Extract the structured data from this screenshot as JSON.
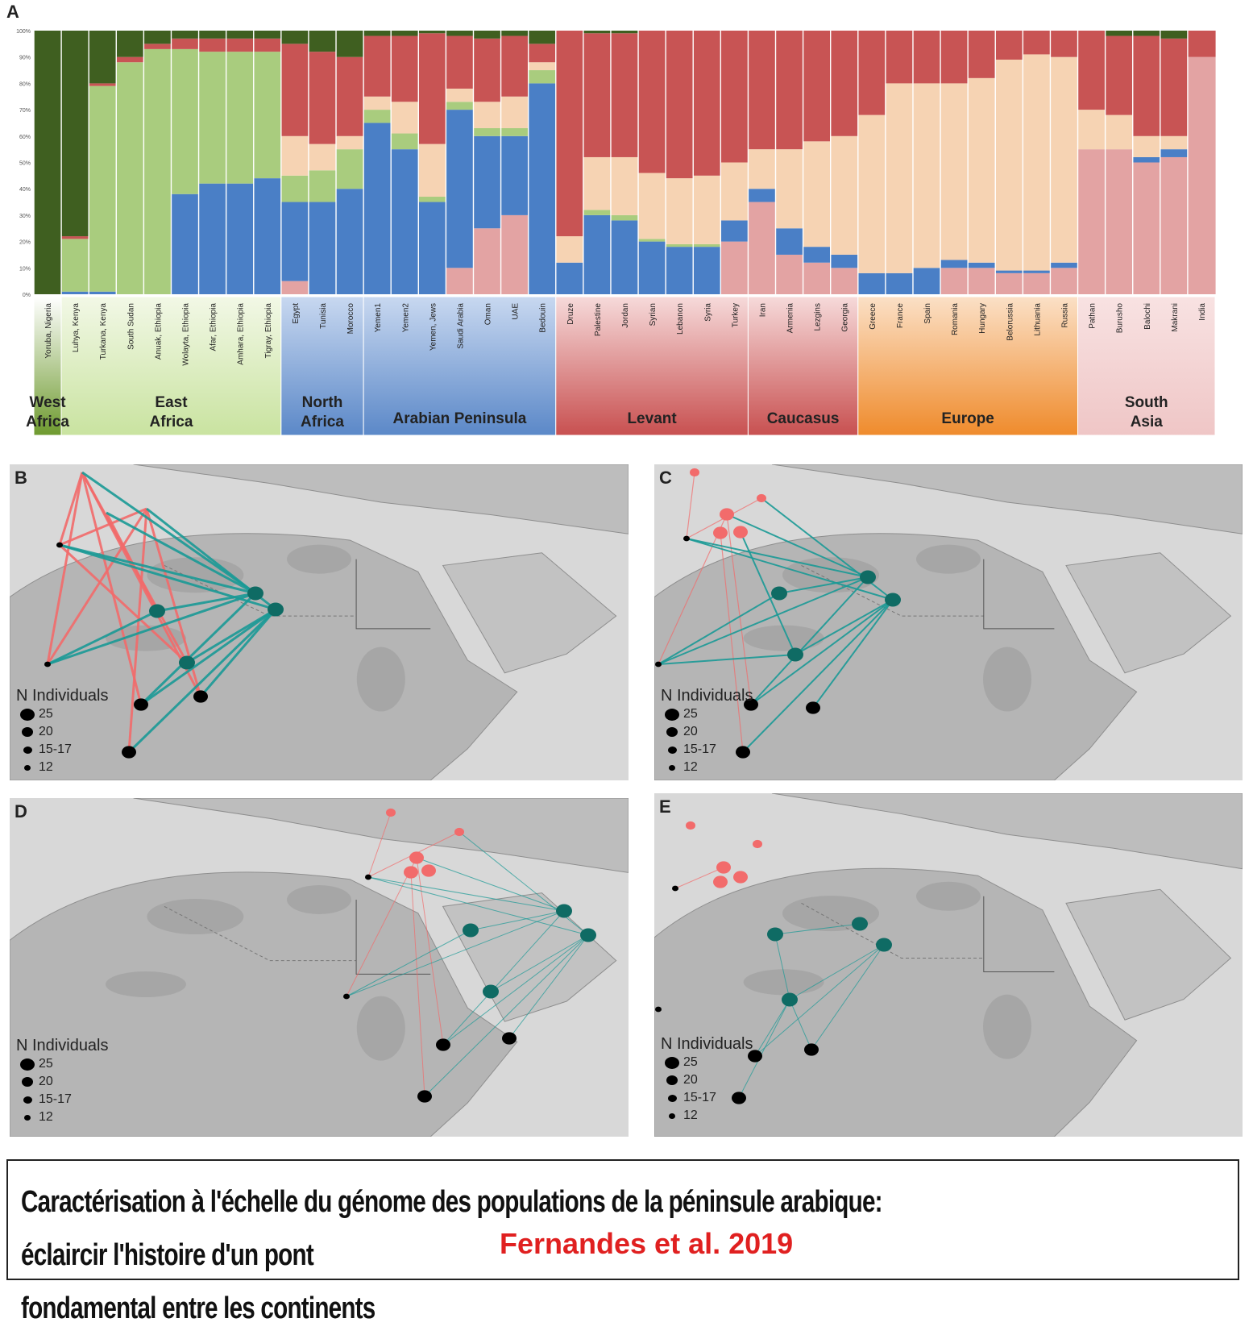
{
  "panels": {
    "a": "A",
    "b": "B",
    "c": "C",
    "d": "D",
    "e": "E"
  },
  "chart_data": {
    "type": "stacked-bar",
    "yticks": [
      "100%",
      "90%",
      "80%",
      "70%",
      "60%",
      "50%",
      "40%",
      "30%",
      "20%",
      "10%",
      "0%"
    ],
    "components": [
      {
        "name": "dark green",
        "color": "#3f5f20"
      },
      {
        "name": "light green",
        "color": "#a9cc7e"
      },
      {
        "name": "blue",
        "color": "#4a7fc6"
      },
      {
        "name": "pink",
        "color": "#e3a3a3"
      },
      {
        "name": "peach",
        "color": "#f6d3b3"
      },
      {
        "name": "red",
        "color": "#c85454"
      }
    ],
    "populations": [
      {
        "label": "Yoruba, Nigeria",
        "comp": [
          1.0,
          0.0,
          0.0,
          0.0,
          0.0,
          0.0
        ]
      },
      {
        "label": "Luhya, Kenya",
        "comp": [
          0.78,
          0.2,
          0.01,
          0.0,
          0.0,
          0.01
        ]
      },
      {
        "label": "Turkana, Kenya",
        "comp": [
          0.2,
          0.78,
          0.01,
          0.0,
          0.0,
          0.01
        ]
      },
      {
        "label": "South Sudan",
        "comp": [
          0.1,
          0.88,
          0.0,
          0.0,
          0.0,
          0.02
        ]
      },
      {
        "label": "Anuak, Ethiopia",
        "comp": [
          0.05,
          0.93,
          0.0,
          0.0,
          0.0,
          0.02
        ]
      },
      {
        "label": "Wolayta, Ethiopia",
        "comp": [
          0.03,
          0.55,
          0.38,
          0.0,
          0.0,
          0.04
        ]
      },
      {
        "label": "Afar, Ethiopia",
        "comp": [
          0.03,
          0.5,
          0.42,
          0.0,
          0.0,
          0.05
        ]
      },
      {
        "label": "Amhara, Ethiopia",
        "comp": [
          0.03,
          0.5,
          0.42,
          0.0,
          0.0,
          0.05
        ]
      },
      {
        "label": "Tigray, Ethiopia",
        "comp": [
          0.03,
          0.48,
          0.44,
          0.0,
          0.0,
          0.05
        ]
      },
      {
        "label": "Egypt",
        "comp": [
          0.05,
          0.1,
          0.3,
          0.05,
          0.15,
          0.35
        ]
      },
      {
        "label": "Tunisia",
        "comp": [
          0.08,
          0.12,
          0.35,
          0.0,
          0.1,
          0.35
        ]
      },
      {
        "label": "Morocco",
        "comp": [
          0.1,
          0.15,
          0.4,
          0.0,
          0.05,
          0.3
        ]
      },
      {
        "label": "Yemen1",
        "comp": [
          0.02,
          0.05,
          0.65,
          0.0,
          0.05,
          0.23
        ]
      },
      {
        "label": "Yemen2",
        "comp": [
          0.02,
          0.06,
          0.55,
          0.0,
          0.12,
          0.25
        ]
      },
      {
        "label": "Yemen, Jews",
        "comp": [
          0.01,
          0.02,
          0.35,
          0.0,
          0.2,
          0.42
        ]
      },
      {
        "label": "Saudi Arabia",
        "comp": [
          0.02,
          0.03,
          0.6,
          0.1,
          0.05,
          0.2
        ]
      },
      {
        "label": "Oman",
        "comp": [
          0.03,
          0.03,
          0.35,
          0.25,
          0.1,
          0.24
        ]
      },
      {
        "label": "UAE",
        "comp": [
          0.02,
          0.03,
          0.3,
          0.3,
          0.12,
          0.23
        ]
      },
      {
        "label": "Bedouin",
        "comp": [
          0.05,
          0.05,
          0.8,
          0.0,
          0.03,
          0.07
        ]
      },
      {
        "label": "Druze",
        "comp": [
          0.0,
          0.0,
          0.12,
          0.0,
          0.1,
          0.78
        ]
      },
      {
        "label": "Palestine",
        "comp": [
          0.01,
          0.02,
          0.3,
          0.0,
          0.2,
          0.47
        ]
      },
      {
        "label": "Jordan",
        "comp": [
          0.01,
          0.02,
          0.28,
          0.0,
          0.22,
          0.47
        ]
      },
      {
        "label": "Syrian",
        "comp": [
          0.0,
          0.01,
          0.2,
          0.0,
          0.25,
          0.54
        ]
      },
      {
        "label": "Lebanon",
        "comp": [
          0.0,
          0.01,
          0.18,
          0.0,
          0.25,
          0.56
        ]
      },
      {
        "label": "Syria",
        "comp": [
          0.0,
          0.01,
          0.18,
          0.0,
          0.26,
          0.55
        ]
      },
      {
        "label": "Turkey",
        "comp": [
          0.0,
          0.0,
          0.08,
          0.2,
          0.22,
          0.5
        ]
      },
      {
        "label": "Iran",
        "comp": [
          0.0,
          0.0,
          0.05,
          0.35,
          0.15,
          0.45
        ]
      },
      {
        "label": "Armenia",
        "comp": [
          0.0,
          0.0,
          0.1,
          0.15,
          0.3,
          0.45
        ]
      },
      {
        "label": "Lezgins",
        "comp": [
          0.0,
          0.0,
          0.06,
          0.12,
          0.4,
          0.42
        ]
      },
      {
        "label": "Georgia",
        "comp": [
          0.0,
          0.0,
          0.05,
          0.1,
          0.45,
          0.4
        ]
      },
      {
        "label": "Greece",
        "comp": [
          0.0,
          0.0,
          0.08,
          0.0,
          0.6,
          0.32
        ]
      },
      {
        "label": "France",
        "comp": [
          0.0,
          0.0,
          0.08,
          0.0,
          0.72,
          0.2
        ]
      },
      {
        "label": "Spain",
        "comp": [
          0.0,
          0.0,
          0.1,
          0.0,
          0.7,
          0.2
        ]
      },
      {
        "label": "Romania",
        "comp": [
          0.0,
          0.0,
          0.03,
          0.1,
          0.67,
          0.2
        ]
      },
      {
        "label": "Hungary",
        "comp": [
          0.0,
          0.0,
          0.02,
          0.1,
          0.7,
          0.18
        ]
      },
      {
        "label": "Belorussia",
        "comp": [
          0.0,
          0.0,
          0.01,
          0.08,
          0.8,
          0.11
        ]
      },
      {
        "label": "Lithuania",
        "comp": [
          0.0,
          0.0,
          0.01,
          0.08,
          0.82,
          0.09
        ]
      },
      {
        "label": "Russia",
        "comp": [
          0.0,
          0.0,
          0.02,
          0.1,
          0.78,
          0.1
        ]
      },
      {
        "label": "Pathan",
        "comp": [
          0.0,
          0.0,
          0.0,
          0.55,
          0.15,
          0.3
        ]
      },
      {
        "label": "Burusho",
        "comp": [
          0.02,
          0.0,
          0.0,
          0.55,
          0.13,
          0.3
        ]
      },
      {
        "label": "Balochi",
        "comp": [
          0.02,
          0.0,
          0.02,
          0.5,
          0.08,
          0.38
        ]
      },
      {
        "label": "Makrani",
        "comp": [
          0.03,
          0.0,
          0.03,
          0.52,
          0.05,
          0.37
        ]
      },
      {
        "label": "India",
        "comp": [
          0.0,
          0.0,
          0.0,
          0.9,
          0.0,
          0.1
        ]
      }
    ],
    "regions": [
      {
        "name": "West Africa",
        "first": 0,
        "last": 0,
        "bg_top": "#ffffff",
        "bg_bottom": "#6e9a2f"
      },
      {
        "name": "East Africa",
        "first": 1,
        "last": 8,
        "bg_top": "#f2f8e6",
        "bg_bottom": "#c9e3a0"
      },
      {
        "name": "North Africa",
        "first": 9,
        "last": 11,
        "bg_top": "#c8d8f0",
        "bg_bottom": "#5b88c8"
      },
      {
        "name": "Arabian Peninsula",
        "first": 12,
        "last": 18,
        "bg_top": "#c8d8f0",
        "bg_bottom": "#5b88c8"
      },
      {
        "name": "Levant",
        "first": 19,
        "last": 25,
        "bg_top": "#f6dada",
        "bg_bottom": "#c85050"
      },
      {
        "name": "Caucasus",
        "first": 26,
        "last": 29,
        "bg_top": "#f6dada",
        "bg_bottom": "#c85050"
      },
      {
        "name": "Europe",
        "first": 30,
        "last": 37,
        "bg_top": "#fbe0c6",
        "bg_bottom": "#ef8b2c"
      },
      {
        "name": "South Asia",
        "first": 38,
        "last": 42,
        "bg_top": "#f8e2e2",
        "bg_bottom": "#efc6c6"
      }
    ],
    "region_labels": [
      {
        "region": "West Africa",
        "lines": [
          "West",
          "Africa"
        ]
      },
      {
        "region": "East Africa",
        "lines": [
          "East",
          "Africa"
        ]
      },
      {
        "region": "North Africa",
        "lines": [
          "North",
          "Africa"
        ]
      },
      {
        "region": "Arabian Peninsula",
        "lines": [
          "Arabian Peninsula"
        ]
      },
      {
        "region": "Levant",
        "lines": [
          "Levant"
        ]
      },
      {
        "region": "Caucasus",
        "lines": [
          "Caucasus"
        ]
      },
      {
        "region": "Europe",
        "lines": [
          "Europe"
        ]
      },
      {
        "region": "South Asia",
        "lines": [
          "South",
          "Asia"
        ]
      }
    ]
  },
  "maps": {
    "legend_title": "N Individuals",
    "legend_items": [
      {
        "label": "25",
        "n": 25
      },
      {
        "label": "20",
        "n": 20
      },
      {
        "label": "15-17",
        "n": 16
      },
      {
        "label": "12",
        "n": 12
      }
    ],
    "colors": {
      "africa": "#000000",
      "levant": "#f26b6b",
      "arabia": "#0f6b64",
      "edge_red": "#f26b6b",
      "edge_teal": "#1a9a96"
    }
  },
  "caption": {
    "title_line1": "Caractérisation à l'échelle du génome des populations de la péninsule arabique: éclaircir l'histoire d'un pont",
    "title_line2": "fondamental entre les continents",
    "author": "Fernandes et al. 2019"
  }
}
